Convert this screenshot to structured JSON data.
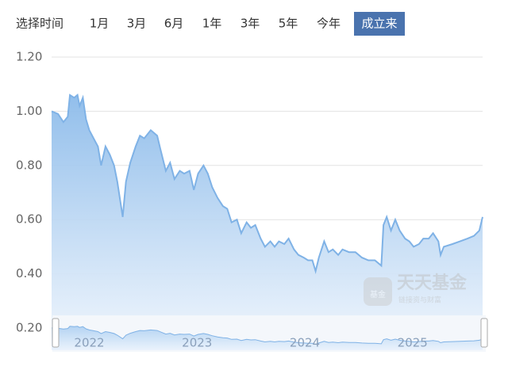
{
  "chart_data": {
    "type": "area",
    "selector_label": "选择时间",
    "ranges": [
      "1月",
      "3月",
      "6月",
      "1年",
      "3年",
      "5年",
      "今年",
      "成立来"
    ],
    "selected_range": "成立来",
    "watermark": "天天基金",
    "watermark_sub": "链接资与财富",
    "watermark_badge": "基金",
    "color": "#7fb2e6",
    "grid": true,
    "xlim": [
      2021.65,
      2025.65
    ],
    "xticks": [
      2022,
      2023,
      2024,
      2025
    ],
    "ylim": [
      0.2,
      1.2
    ],
    "yticks": [
      {
        "value": 0.2,
        "label": "0.20"
      },
      {
        "value": 0.4,
        "label": "0.40"
      },
      {
        "value": 0.6,
        "label": "0.60"
      },
      {
        "value": 0.8,
        "label": "0.80"
      },
      {
        "value": 1.0,
        "label": "1.00"
      },
      {
        "value": 1.2,
        "label": "1.20"
      }
    ],
    "x": [
      2021.65,
      2021.71,
      2021.76,
      2021.8,
      2021.82,
      2021.86,
      2021.89,
      2021.91,
      2021.94,
      2021.97,
      2022.0,
      2022.04,
      2022.08,
      2022.11,
      2022.15,
      2022.19,
      2022.23,
      2022.26,
      2022.31,
      2022.34,
      2022.38,
      2022.43,
      2022.47,
      2022.51,
      2022.57,
      2022.63,
      2022.66,
      2022.71,
      2022.75,
      2022.79,
      2022.84,
      2022.88,
      2022.93,
      2022.97,
      2023.01,
      2023.06,
      2023.1,
      2023.14,
      2023.19,
      2023.24,
      2023.28,
      2023.32,
      2023.37,
      2023.41,
      2023.46,
      2023.5,
      2023.54,
      2023.59,
      2023.63,
      2023.68,
      2023.72,
      2023.76,
      2023.81,
      2023.85,
      2023.9,
      2023.94,
      2023.99,
      2024.03,
      2024.07,
      2024.1,
      2024.13,
      2024.18,
      2024.22,
      2024.26,
      2024.31,
      2024.35,
      2024.41,
      2024.47,
      2024.53,
      2024.59,
      2024.65,
      2024.71,
      2024.73,
      2024.76,
      2024.8,
      2024.84,
      2024.88,
      2024.93,
      2024.97,
      2025.01,
      2025.06,
      2025.1,
      2025.15,
      2025.19,
      2025.24,
      2025.26,
      2025.29,
      2025.37,
      2025.44,
      2025.51,
      2025.57,
      2025.62,
      2025.65
    ],
    "values": [
      1.0,
      0.99,
      0.96,
      0.98,
      1.06,
      1.05,
      1.06,
      1.02,
      1.05,
      0.97,
      0.93,
      0.9,
      0.87,
      0.8,
      0.87,
      0.84,
      0.8,
      0.74,
      0.61,
      0.74,
      0.81,
      0.87,
      0.91,
      0.9,
      0.93,
      0.91,
      0.86,
      0.78,
      0.81,
      0.75,
      0.78,
      0.77,
      0.78,
      0.71,
      0.77,
      0.8,
      0.77,
      0.72,
      0.68,
      0.65,
      0.64,
      0.59,
      0.6,
      0.55,
      0.59,
      0.57,
      0.58,
      0.53,
      0.5,
      0.52,
      0.5,
      0.52,
      0.51,
      0.53,
      0.49,
      0.47,
      0.46,
      0.45,
      0.45,
      0.41,
      0.46,
      0.52,
      0.48,
      0.49,
      0.47,
      0.49,
      0.48,
      0.48,
      0.46,
      0.45,
      0.45,
      0.43,
      0.58,
      0.61,
      0.56,
      0.6,
      0.56,
      0.53,
      0.52,
      0.5,
      0.51,
      0.53,
      0.53,
      0.55,
      0.52,
      0.47,
      0.5,
      0.51,
      0.52,
      0.53,
      0.54,
      0.56,
      0.61
    ]
  }
}
